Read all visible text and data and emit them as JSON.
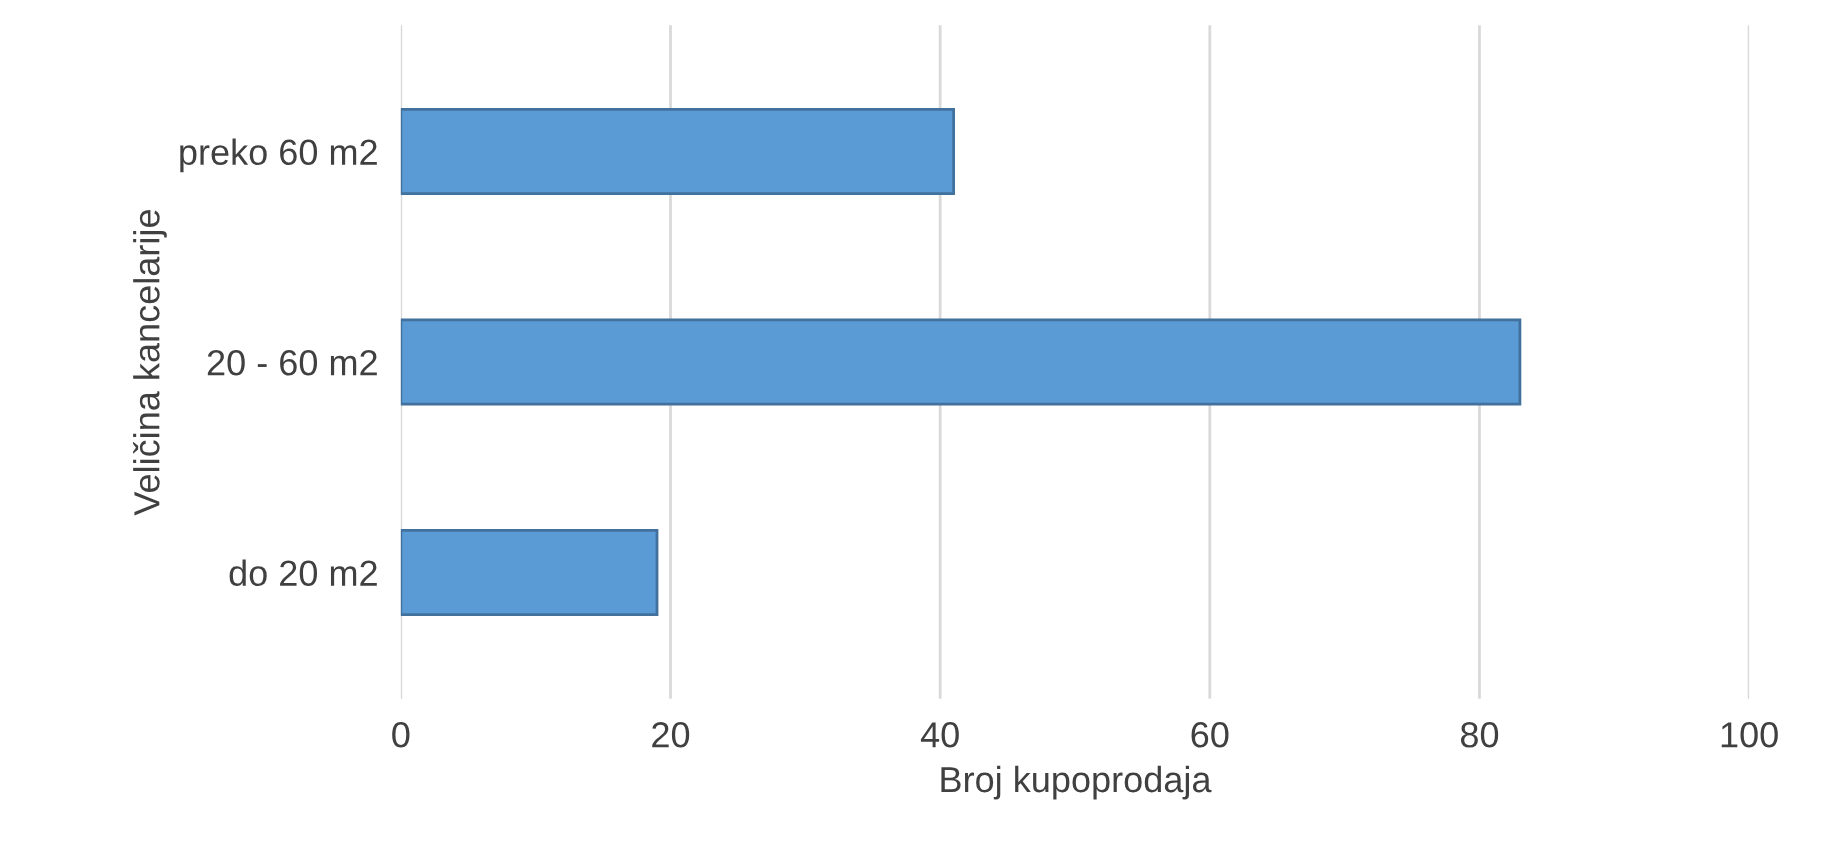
{
  "chart_data": {
    "type": "bar",
    "orientation": "horizontal",
    "categories": [
      "preko 60 m2",
      "20 - 60 m2",
      "do 20 m2"
    ],
    "values": [
      41,
      83,
      19
    ],
    "color": "#5b9bd5",
    "xlabel": "Broj kupoprodaja",
    "ylabel": "Veličina kancelarije",
    "xlim": [
      0,
      100
    ],
    "xticks": [
      0,
      20,
      40,
      60,
      80,
      100
    ],
    "grid": "x"
  }
}
